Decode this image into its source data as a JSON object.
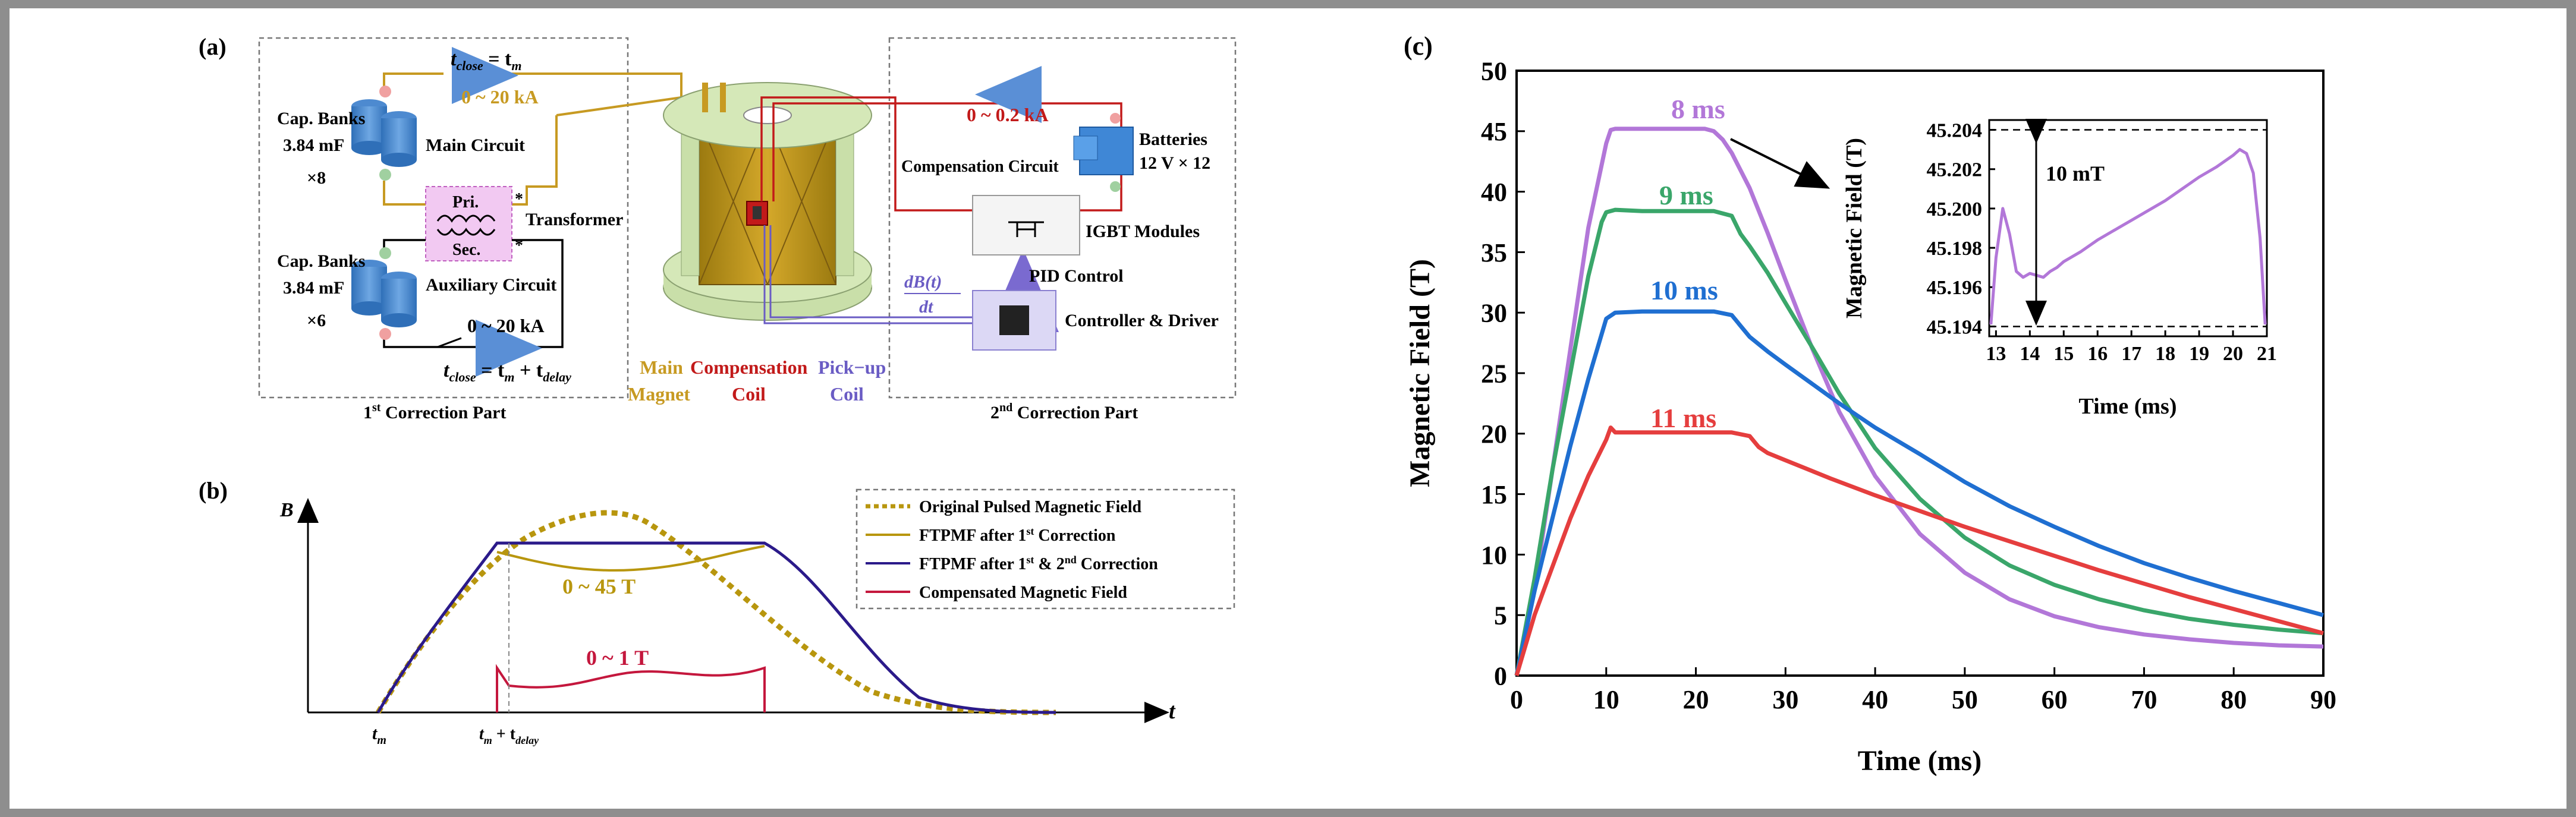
{
  "panel_a": {
    "label": "(a)",
    "t_close_main": "t",
    "t_close_main_sub": "close",
    "t_close_main_rhs": " = t",
    "t_close_main_rhs_sub": "m",
    "main_current": "0 ~ 20 kA",
    "cap_banks_1": "Cap. Banks",
    "cap_1_value": "3.84 mF",
    "cap_1_count": "×8",
    "main_circuit": "Main Circuit",
    "pri": "Pri.",
    "sec": "Sec.",
    "transformer": "Transformer",
    "cap_banks_2": "Cap. Banks",
    "cap_2_value": "3.84 mF",
    "cap_2_count": "×6",
    "aux_circuit": "Auxiliary Circuit",
    "aux_current": "0 ~ 20 kA",
    "t_close_aux": "t",
    "t_close_aux_sub": "close",
    "t_close_aux_rhs": " = t",
    "t_close_aux_rhs_sub": "m",
    "t_close_aux_plus": " + t",
    "t_close_aux_plus_sub": "delay",
    "first_part": "1",
    "first_part_sup": "st",
    "first_part_rest": " Correction Part",
    "main_magnet_1": "Main",
    "main_magnet_2": "Magnet",
    "compensation_coil_1": "Compensation",
    "compensation_coil_2": "Coil",
    "pickup_coil_1": "Pick−up",
    "pickup_coil_2": "Coil",
    "comp_current": "0 ~ 0.2 kA",
    "batteries": "Batteries",
    "batteries_value": "12 V × 12",
    "compensation_circuit": "Compensation Circuit",
    "igbt": "IGBT Modules",
    "pid": "PID Control",
    "db_top": "dB(t)",
    "db_bottom": "dt",
    "controller": "Controller & Driver",
    "second_part": "2",
    "second_part_sup": "nd",
    "second_part_rest": " Correction Part"
  },
  "panel_b": {
    "label": "(b)",
    "y_label": "B",
    "x_label": "t",
    "tick_tm": "t",
    "tick_tm_sub": "m",
    "tick_tdelay": "t",
    "tick_tdelay_sub": "m",
    "tick_tdelay_plus": " + t",
    "tick_tdelay_plus_sub": "delay",
    "range_main": "0 ~ 45  T",
    "range_comp": "0 ~ 1  T",
    "legend": [
      {
        "text": "Original Pulsed Magnetic Field",
        "sup": "",
        "rest": "",
        "color": "#b8960e"
      },
      {
        "text": "FTPMF after 1",
        "sup": "st",
        "rest": " Correction",
        "color": "#b8960e"
      },
      {
        "text": "FTPMF after 1",
        "sup": "st",
        "rest": " & 2",
        "sup2": "nd",
        "rest2": " Correction",
        "color": "#2b1a8a"
      },
      {
        "text": "Compensated Magnetic Field",
        "sup": "",
        "rest": "",
        "color": "#c4173d"
      }
    ]
  },
  "panel_c": {
    "label": "(c)",
    "inset_annotation": "10 mT"
  },
  "chart_data": [
    {
      "type": "line",
      "xlabel": "Time (ms)",
      "ylabel": "Magnetic Field (T)",
      "xlim": [
        0,
        90
      ],
      "ylim": [
        0,
        50
      ],
      "xticks": [
        0,
        10,
        20,
        30,
        40,
        50,
        60,
        70,
        80,
        90
      ],
      "yticks": [
        0,
        5,
        10,
        15,
        20,
        25,
        30,
        35,
        40,
        45,
        50
      ],
      "grid": false,
      "series": [
        {
          "name": "8 ms",
          "color": "#b277d8",
          "x": [
            0,
            2,
            4,
            6,
            8,
            10,
            10.5,
            11,
            12,
            14,
            16,
            18,
            20,
            21,
            22,
            23,
            24,
            26,
            28,
            30,
            33,
            36,
            40,
            45,
            50,
            55,
            60,
            65,
            70,
            75,
            80,
            85,
            90
          ],
          "y": [
            0,
            7,
            17,
            27,
            37,
            44,
            45.1,
            45.2,
            45.2,
            45.2,
            45.2,
            45.2,
            45.2,
            45.2,
            45.0,
            44.3,
            43.2,
            40.3,
            36.6,
            32.7,
            27.0,
            21.8,
            16.5,
            11.7,
            8.5,
            6.3,
            4.9,
            4.0,
            3.4,
            3.0,
            2.7,
            2.5,
            2.4
          ]
        },
        {
          "name": "9 ms",
          "color": "#3aa66a",
          "x": [
            0,
            2,
            4,
            6,
            8,
            9.5,
            10,
            11,
            14,
            18,
            22,
            24,
            25,
            26,
            28,
            30,
            33,
            36,
            40,
            45,
            50,
            55,
            60,
            65,
            70,
            75,
            80,
            85,
            90
          ],
          "y": [
            0,
            8,
            17,
            25,
            33,
            37.5,
            38.3,
            38.5,
            38.4,
            38.4,
            38.4,
            38.0,
            36.5,
            35.5,
            33.3,
            30.8,
            27.1,
            23.3,
            18.8,
            14.6,
            11.4,
            9.1,
            7.5,
            6.3,
            5.4,
            4.7,
            4.2,
            3.8,
            3.5
          ]
        },
        {
          "name": "10 ms",
          "color": "#1f6fd1",
          "x": [
            0,
            2,
            4,
            6,
            8,
            10,
            11,
            14,
            18,
            22,
            24,
            25,
            26,
            28,
            30,
            33,
            36,
            40,
            45,
            50,
            55,
            60,
            65,
            70,
            75,
            80,
            85,
            90
          ],
          "y": [
            0,
            7,
            13,
            19,
            24.5,
            29.5,
            30.0,
            30.1,
            30.1,
            30.1,
            29.8,
            28.9,
            28.0,
            26.8,
            25.7,
            24.1,
            22.5,
            20.5,
            18.3,
            16.0,
            14.0,
            12.3,
            10.7,
            9.3,
            8.1,
            7.0,
            6.0,
            5.0
          ]
        },
        {
          "name": "11 ms",
          "color": "#e53e3e",
          "x": [
            0,
            2,
            4,
            6,
            8,
            10,
            10.5,
            11,
            12,
            14,
            18,
            22,
            24,
            26,
            27,
            28,
            30,
            35,
            40,
            45,
            50,
            55,
            60,
            65,
            70,
            75,
            80,
            85,
            90
          ],
          "y": [
            0,
            5,
            9,
            13,
            16.5,
            19.5,
            20.5,
            20.1,
            20.1,
            20.1,
            20.1,
            20.1,
            20.1,
            19.8,
            18.9,
            18.4,
            17.8,
            16.3,
            14.9,
            13.6,
            12.3,
            11.1,
            9.9,
            8.7,
            7.6,
            6.5,
            5.5,
            4.5,
            3.5
          ]
        }
      ],
      "annotations": [
        "8 ms",
        "9 ms",
        "10 ms",
        "11 ms"
      ]
    },
    {
      "type": "line",
      "xlabel": "Time (ms)",
      "ylabel": "Magnetic Field (T)",
      "xlim": [
        12.8,
        21
      ],
      "ylim": [
        45.1935,
        45.2045
      ],
      "xticks": [
        13,
        14,
        15,
        16,
        17,
        18,
        19,
        20,
        21
      ],
      "yticks": [
        45.194,
        45.196,
        45.198,
        45.2,
        45.202,
        45.204
      ],
      "ytick_labels": [
        "45.194",
        "45.196",
        "45.198",
        "45.200",
        "45.202",
        "45.204"
      ],
      "reference_lines": [
        45.204,
        45.194
      ],
      "series": [
        {
          "color": "#b277d8",
          "x": [
            12.85,
            13.0,
            13.2,
            13.4,
            13.6,
            13.8,
            14.0,
            14.2,
            14.4,
            14.6,
            14.8,
            15.0,
            15.5,
            16.0,
            16.5,
            17.0,
            17.5,
            18.0,
            18.5,
            19.0,
            19.5,
            20.0,
            20.2,
            20.4,
            20.6,
            20.8,
            20.95
          ],
          "y": [
            45.1941,
            45.1975,
            45.2,
            45.1987,
            45.1968,
            45.1965,
            45.1967,
            45.1966,
            45.1965,
            45.1968,
            45.197,
            45.1973,
            45.1978,
            45.1984,
            45.1989,
            45.1994,
            45.1999,
            45.2004,
            45.201,
            45.2016,
            45.2021,
            45.2027,
            45.203,
            45.2028,
            45.2018,
            45.1985,
            45.1941
          ]
        }
      ]
    }
  ]
}
